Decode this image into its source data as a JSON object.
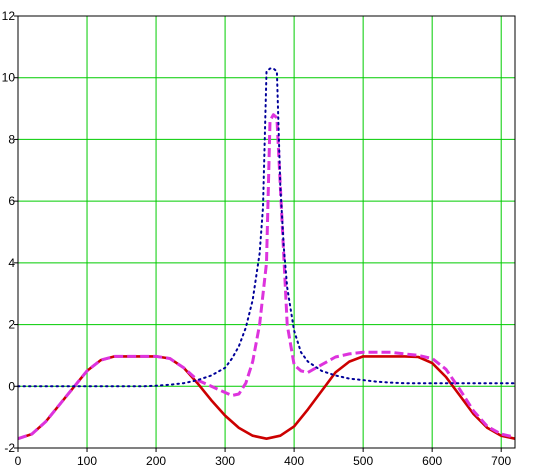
{
  "chart_data": {
    "type": "line",
    "title": "",
    "xlabel": "",
    "ylabel": "",
    "xlim": [
      0,
      720
    ],
    "ylim": [
      -2,
      12
    ],
    "x_ticks": [
      0,
      100,
      200,
      300,
      400,
      500,
      600,
      700
    ],
    "y_ticks": [
      -2,
      0,
      2,
      4,
      6,
      8,
      10,
      12
    ],
    "x_tick_labels": [
      "0",
      "100",
      "200",
      "300",
      "400",
      "500",
      "600",
      "700"
    ],
    "y_tick_labels": [
      "-2",
      "0",
      "2",
      "4",
      "6",
      "8",
      "10",
      "12"
    ],
    "grid": true,
    "grid_color": "#00cc00",
    "legend": "none",
    "series": [
      {
        "color": "#cc0000",
        "style": "solid",
        "x": [
          0,
          20,
          40,
          60,
          80,
          100,
          120,
          140,
          160,
          180,
          200,
          220,
          240,
          260,
          280,
          300,
          320,
          340,
          360,
          380,
          400,
          420,
          440,
          460,
          480,
          500,
          520,
          540,
          560,
          580,
          600,
          620,
          640,
          660,
          680,
          700,
          720
        ],
        "y": [
          -1.7,
          -1.55,
          -1.15,
          -0.6,
          -0.05,
          0.5,
          0.85,
          0.97,
          0.97,
          0.97,
          0.97,
          0.9,
          0.6,
          0.1,
          -0.45,
          -0.95,
          -1.35,
          -1.6,
          -1.7,
          -1.6,
          -1.3,
          -0.75,
          -0.15,
          0.45,
          0.8,
          0.97,
          0.97,
          0.97,
          0.97,
          0.95,
          0.75,
          0.3,
          -0.3,
          -0.9,
          -1.35,
          -1.6,
          -1.7
        ]
      },
      {
        "color": "#dd33dd",
        "style": "dashed",
        "x": [
          0,
          20,
          40,
          60,
          80,
          100,
          120,
          140,
          160,
          180,
          200,
          220,
          240,
          260,
          280,
          300,
          310,
          320,
          330,
          340,
          350,
          360,
          365,
          370,
          375,
          380,
          390,
          400,
          410,
          420,
          440,
          460,
          480,
          500,
          520,
          540,
          560,
          580,
          600,
          620,
          640,
          660,
          680,
          700,
          720
        ],
        "y": [
          -1.7,
          -1.55,
          -1.15,
          -0.6,
          -0.05,
          0.5,
          0.85,
          0.97,
          0.97,
          0.97,
          0.97,
          0.9,
          0.6,
          0.2,
          0.0,
          -0.2,
          -0.3,
          -0.25,
          0.1,
          0.8,
          2.0,
          4.0,
          8.6,
          8.8,
          8.7,
          6.5,
          2.0,
          0.7,
          0.5,
          0.45,
          0.7,
          0.95,
          1.05,
          1.1,
          1.1,
          1.1,
          1.05,
          1.0,
          0.9,
          0.55,
          -0.1,
          -0.8,
          -1.3,
          -1.55,
          -1.65
        ]
      },
      {
        "color": "#000099",
        "style": "dotted",
        "x": [
          0,
          20,
          40,
          60,
          80,
          100,
          120,
          140,
          160,
          180,
          200,
          220,
          240,
          260,
          280,
          300,
          310,
          320,
          330,
          340,
          350,
          355,
          360,
          365,
          370,
          375,
          380,
          385,
          390,
          400,
          410,
          420,
          440,
          460,
          480,
          500,
          520,
          540,
          560,
          580,
          600,
          620,
          640,
          660,
          680,
          700,
          720
        ],
        "y": [
          0.0,
          0.0,
          0.0,
          0.0,
          0.0,
          0.0,
          0.0,
          0.0,
          0.0,
          0.0,
          0.02,
          0.05,
          0.1,
          0.2,
          0.35,
          0.6,
          0.9,
          1.3,
          1.9,
          2.8,
          4.3,
          5.8,
          10.2,
          10.3,
          10.3,
          10.2,
          6.5,
          4.5,
          3.2,
          1.8,
          1.1,
          0.8,
          0.5,
          0.35,
          0.25,
          0.2,
          0.15,
          0.12,
          0.1,
          0.1,
          0.1,
          0.1,
          0.1,
          0.1,
          0.1,
          0.1,
          0.1
        ]
      }
    ]
  }
}
